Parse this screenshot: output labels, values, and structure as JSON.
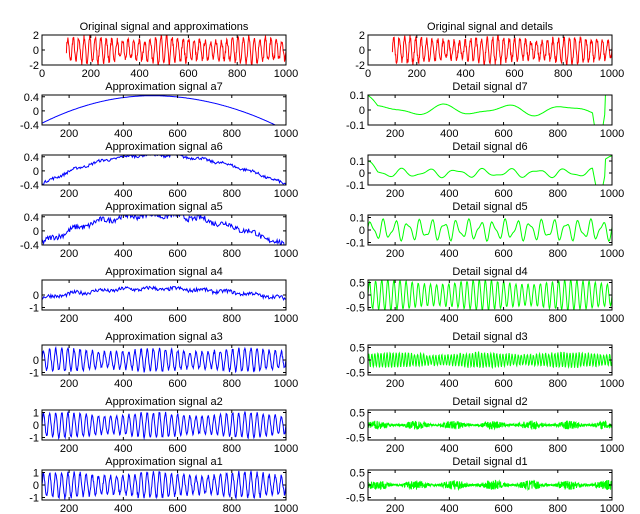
{
  "chart_data": [
    {
      "id": "s",
      "type": "line",
      "title": "Original signal and approximations",
      "xlim": [
        0,
        1000
      ],
      "ylim": [
        -2,
        2
      ],
      "xticks": [
        0,
        200,
        400,
        600,
        800,
        1000
      ],
      "yticks": [
        2,
        0,
        -2
      ],
      "color": "#ff0000",
      "xrange": [
        100,
        1000
      ],
      "shape": {
        "kind": "osc",
        "amp": 1.7,
        "cycles": 40,
        "noise": 0.25
      }
    },
    {
      "id": "a7",
      "type": "line",
      "title": "Approximation signal a7",
      "xlim": [
        100,
        1000
      ],
      "ylim": [
        -0.4,
        0.45
      ],
      "xticks": [
        200,
        400,
        600,
        800,
        1000
      ],
      "yticks": [
        0.4,
        0,
        -0.4
      ],
      "color": "#0000ff",
      "xrange": [
        100,
        1000
      ],
      "shape": {
        "kind": "envelope",
        "peak": 0.43,
        "start": -0.35,
        "end": -0.55,
        "noise": 0.0
      }
    },
    {
      "id": "a6",
      "type": "line",
      "title": "Approximation signal a6",
      "xlim": [
        100,
        1000
      ],
      "ylim": [
        -0.4,
        0.45
      ],
      "xticks": [
        200,
        400,
        600,
        800,
        1000
      ],
      "yticks": [
        0.4,
        0,
        -0.4
      ],
      "color": "#0000ff",
      "xrange": [
        100,
        1000
      ],
      "shape": {
        "kind": "envelope",
        "peak": 0.45,
        "start": -0.38,
        "end": -0.4,
        "noise": 0.04
      }
    },
    {
      "id": "a5",
      "type": "line",
      "title": "Approximation signal a5",
      "xlim": [
        100,
        1000
      ],
      "ylim": [
        -0.4,
        0.45
      ],
      "xticks": [
        200,
        400,
        600,
        800,
        1000
      ],
      "yticks": [
        0.4,
        0,
        -0.4
      ],
      "color": "#0000ff",
      "xrange": [
        100,
        1000
      ],
      "shape": {
        "kind": "envelope",
        "peak": 0.45,
        "start": -0.35,
        "end": -0.45,
        "noise": 0.08
      }
    },
    {
      "id": "a4",
      "type": "line",
      "title": "Approximation signal a4",
      "xlim": [
        100,
        1000
      ],
      "ylim": [
        -1.2,
        1.2
      ],
      "xticks": [
        200,
        400,
        600,
        800,
        1000
      ],
      "yticks": [
        0,
        -1
      ],
      "color": "#0000ff",
      "xrange": [
        100,
        1000
      ],
      "shape": {
        "kind": "envelope",
        "peak": 0.5,
        "start": -0.25,
        "end": -0.3,
        "noise": 0.15
      }
    },
    {
      "id": "a3",
      "type": "line",
      "title": "Approximation signal a3",
      "xlim": [
        100,
        1000
      ],
      "ylim": [
        -1.2,
        1.2
      ],
      "xticks": [
        200,
        400,
        600,
        800,
        1000
      ],
      "yticks": [
        0,
        -1
      ],
      "color": "#0000ff",
      "xrange": [
        100,
        1000
      ],
      "shape": {
        "kind": "osc",
        "amp": 0.9,
        "cycles": 40,
        "noise": 0.15
      }
    },
    {
      "id": "a2",
      "type": "line",
      "title": "Approximation signal a2",
      "xlim": [
        100,
        1000
      ],
      "ylim": [
        -1.2,
        1.2
      ],
      "xticks": [
        200,
        400,
        600,
        800,
        1000
      ],
      "yticks": [
        1,
        0,
        -1
      ],
      "color": "#0000ff",
      "xrange": [
        100,
        1000
      ],
      "shape": {
        "kind": "osc",
        "amp": 1.0,
        "cycles": 40,
        "noise": 0.1
      }
    },
    {
      "id": "a1",
      "type": "line",
      "title": "Approximation signal a1",
      "xlim": [
        100,
        1000
      ],
      "ylim": [
        -1.2,
        1.2
      ],
      "xticks": [
        200,
        400,
        600,
        800,
        1000
      ],
      "yticks": [
        1,
        0,
        -1
      ],
      "color": "#0000ff",
      "xrange": [
        100,
        1000
      ],
      "shape": {
        "kind": "osc",
        "amp": 1.0,
        "cycles": 40,
        "noise": 0.15
      }
    },
    {
      "id": "s2",
      "type": "line",
      "title": "Original signal and details",
      "xlim": [
        0,
        1000
      ],
      "ylim": [
        -2,
        2
      ],
      "xticks": [
        0,
        200,
        400,
        600,
        800,
        1000
      ],
      "yticks": [
        2,
        0,
        -2
      ],
      "color": "#ff0000",
      "xrange": [
        100,
        1000
      ],
      "shape": {
        "kind": "osc",
        "amp": 1.7,
        "cycles": 40,
        "noise": 0.25
      }
    },
    {
      "id": "d7",
      "type": "line",
      "title": "Detail signal d7",
      "xlim": [
        100,
        1000
      ],
      "ylim": [
        -0.1,
        0.1
      ],
      "xticks": [
        200,
        400,
        600,
        800,
        1000
      ],
      "yticks": [
        0.1,
        0,
        -0.1
      ],
      "color": "#00ff00",
      "xrange": [
        100,
        1000
      ],
      "shape": {
        "kind": "smooth",
        "amp": 0.04,
        "cycles": 4,
        "edge": true
      }
    },
    {
      "id": "d6",
      "type": "line",
      "title": "Detail signal d6",
      "xlim": [
        100,
        1000
      ],
      "ylim": [
        -0.1,
        0.15
      ],
      "xticks": [
        200,
        400,
        600,
        800,
        1000
      ],
      "yticks": [
        0.1,
        0,
        -0.1
      ],
      "color": "#00ff00",
      "xrange": [
        100,
        1000
      ],
      "shape": {
        "kind": "smooth",
        "amp": 0.04,
        "cycles": 9,
        "edge": true
      }
    },
    {
      "id": "d5",
      "type": "line",
      "title": "Detail signal d5",
      "xlim": [
        100,
        1000
      ],
      "ylim": [
        -0.12,
        0.12
      ],
      "xticks": [
        200,
        400,
        600,
        800,
        1000
      ],
      "yticks": [
        0.1,
        0,
        -0.1
      ],
      "color": "#00ff00",
      "xrange": [
        100,
        1000
      ],
      "shape": {
        "kind": "smooth",
        "amp": 0.09,
        "cycles": 20,
        "edge": false
      }
    },
    {
      "id": "d4",
      "type": "line",
      "title": "Detail signal d4",
      "xlim": [
        100,
        1000
      ],
      "ylim": [
        -0.6,
        0.6
      ],
      "xticks": [
        200,
        400,
        600,
        800,
        1000
      ],
      "yticks": [
        0.5,
        0,
        -0.5
      ],
      "color": "#00ff00",
      "xrange": [
        100,
        1000
      ],
      "shape": {
        "kind": "osc",
        "amp": 0.6,
        "cycles": 40,
        "noise": 0.05
      }
    },
    {
      "id": "d3",
      "type": "line",
      "title": "Detail signal d3",
      "xlim": [
        100,
        1000
      ],
      "ylim": [
        -0.6,
        0.6
      ],
      "xticks": [
        200,
        400,
        600,
        800,
        1000
      ],
      "yticks": [
        0.5,
        0,
        -0.5
      ],
      "color": "#00ff00",
      "xrange": [
        100,
        1000
      ],
      "shape": {
        "kind": "osc",
        "amp": 0.3,
        "cycles": 80,
        "noise": 0.15
      }
    },
    {
      "id": "d2",
      "type": "line",
      "title": "Detail signal d2",
      "xlim": [
        100,
        1000
      ],
      "ylim": [
        -0.6,
        0.6
      ],
      "xticks": [
        200,
        400,
        600,
        800,
        1000
      ],
      "yticks": [
        0.5,
        0,
        -0.5
      ],
      "color": "#00ff00",
      "xrange": [
        100,
        1000
      ],
      "shape": {
        "kind": "noise",
        "amp": 0.18
      }
    },
    {
      "id": "d1",
      "type": "line",
      "title": "Detail signal d1",
      "xlim": [
        100,
        1000
      ],
      "ylim": [
        -0.6,
        0.6
      ],
      "xticks": [
        200,
        400,
        600,
        800,
        1000
      ],
      "yticks": [
        0.5,
        0,
        -0.5
      ],
      "color": "#00ff00",
      "xrange": [
        100,
        1000
      ],
      "shape": {
        "kind": "noise",
        "amp": 0.2
      }
    }
  ]
}
